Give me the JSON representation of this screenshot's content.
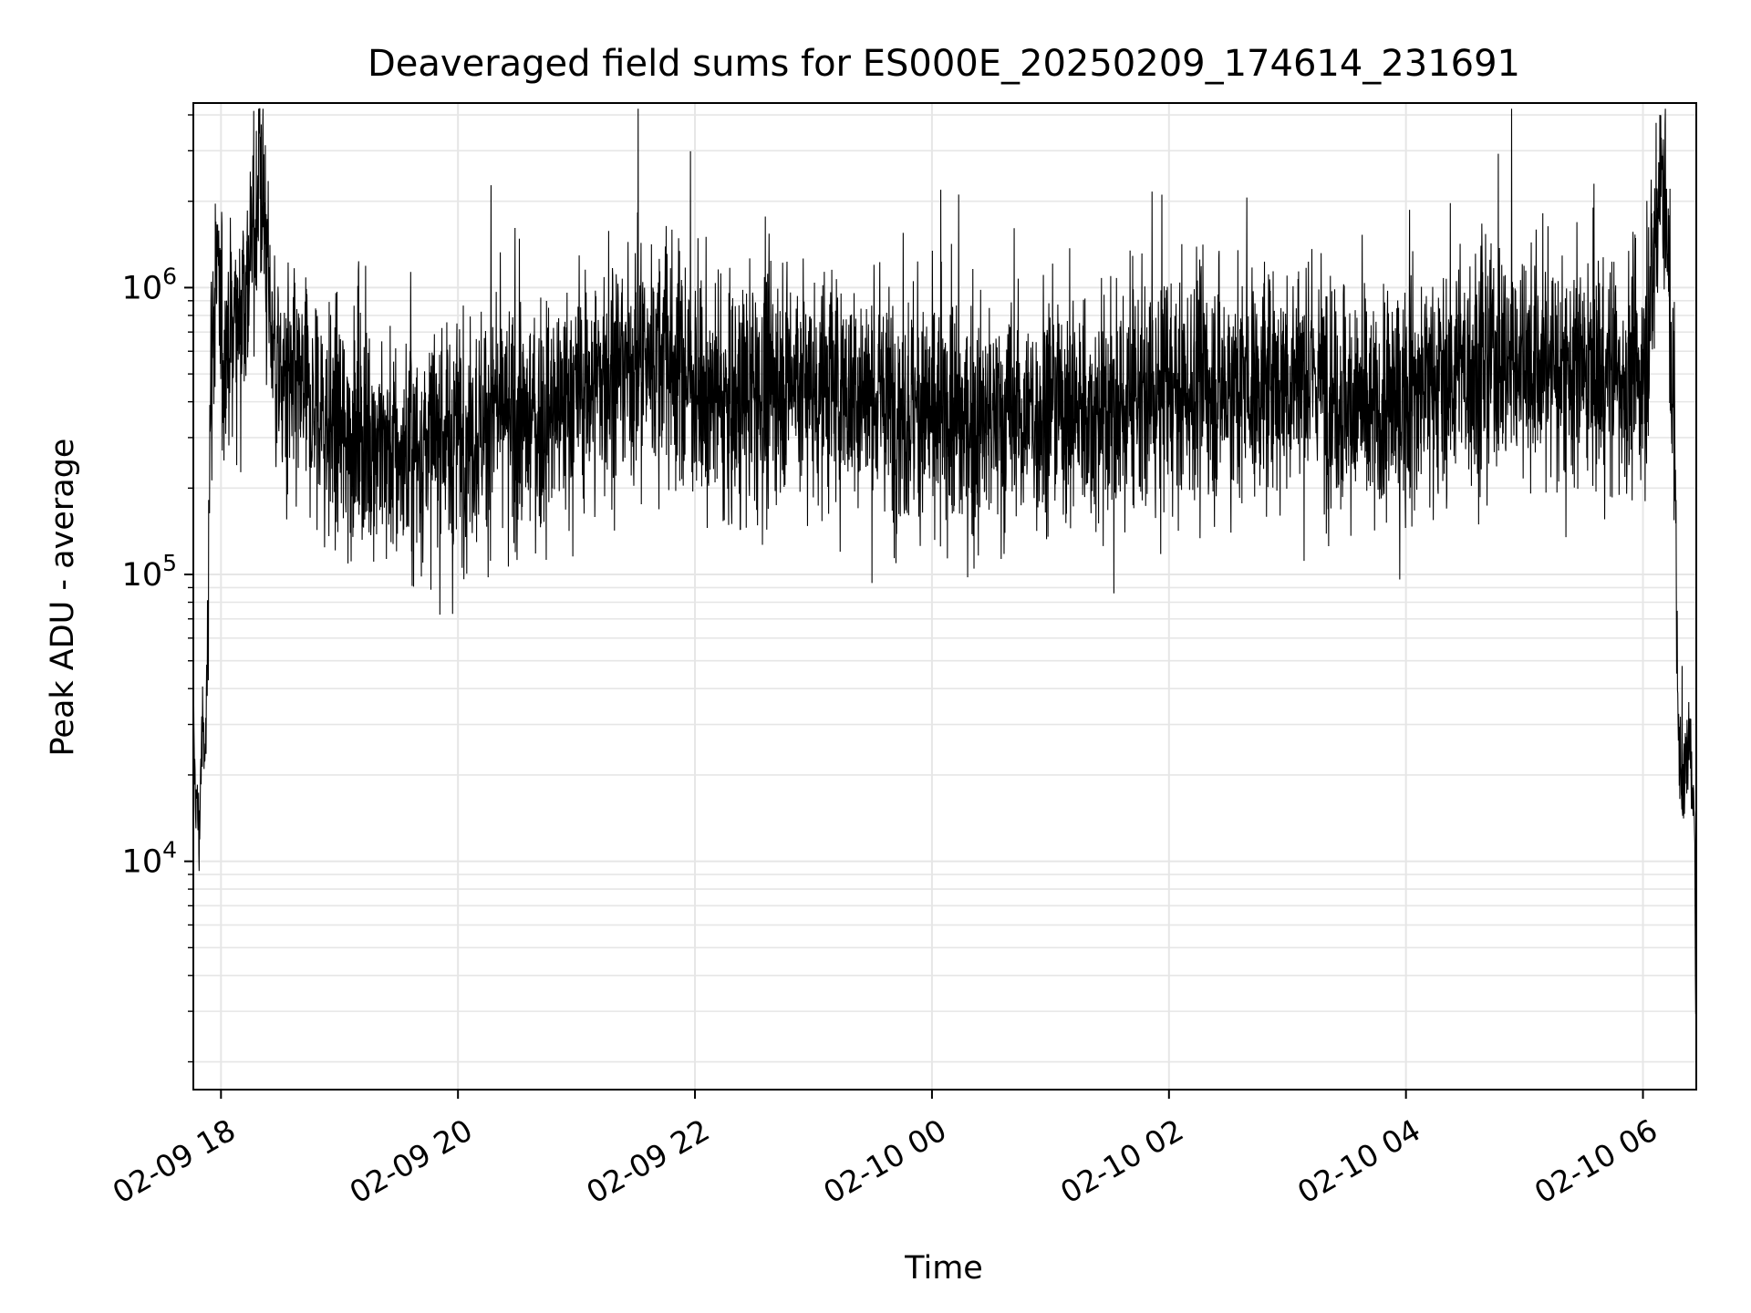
{
  "chart_data": {
    "type": "line",
    "title": "Deaveraged field sums for ES000E_20250209_174614_231691",
    "xlabel": "Time",
    "ylabel": "Peak ADU - average",
    "y_scale": "log",
    "ylim": [
      1600,
      4400000
    ],
    "xlim": [
      "2025-02-09 17:46",
      "2025-02-10 06:27"
    ],
    "grid": true,
    "line_color": "#000000",
    "grid_color": "#e6e6e6",
    "x_ticks": [
      {
        "value": "2025-02-09 18:00",
        "label": "02-09 18"
      },
      {
        "value": "2025-02-09 20:00",
        "label": "02-09 20"
      },
      {
        "value": "2025-02-09 22:00",
        "label": "02-09 22"
      },
      {
        "value": "2025-02-10 00:00",
        "label": "02-10 00"
      },
      {
        "value": "2025-02-10 02:00",
        "label": "02-10 02"
      },
      {
        "value": "2025-02-10 04:00",
        "label": "02-10 04"
      },
      {
        "value": "2025-02-10 06:00",
        "label": "02-10 06"
      }
    ],
    "y_ticks": [
      {
        "value": 10000,
        "base": "10",
        "exp": "4"
      },
      {
        "value": 100000,
        "base": "10",
        "exp": "5"
      },
      {
        "value": 1000000,
        "base": "10",
        "exp": "6"
      }
    ],
    "series": [
      {
        "x": [
          "2025-02-09 17:46",
          "2025-02-09 17:47",
          "2025-02-09 17:48",
          "2025-02-09 17:49",
          "2025-02-09 17:50",
          "2025-02-09 17:51",
          "2025-02-09 17:52",
          "2025-02-09 17:53",
          "2025-02-09 17:54",
          "2025-02-09 17:56",
          "2025-02-09 17:58",
          "2025-02-09 18:00",
          "2025-02-09 18:05",
          "2025-02-09 18:10",
          "2025-02-09 18:15",
          "2025-02-09 18:20",
          "2025-02-09 18:25",
          "2025-02-09 18:30",
          "2025-02-09 18:45",
          "2025-02-09 19:00",
          "2025-02-09 19:15",
          "2025-02-09 19:30",
          "2025-02-09 19:45",
          "2025-02-09 20:00",
          "2025-02-09 20:15",
          "2025-02-09 20:30",
          "2025-02-09 20:45",
          "2025-02-09 21:00",
          "2025-02-09 21:15",
          "2025-02-09 21:30",
          "2025-02-09 21:45",
          "2025-02-09 22:00",
          "2025-02-09 22:15",
          "2025-02-09 22:30",
          "2025-02-09 22:45",
          "2025-02-09 23:00",
          "2025-02-09 23:15",
          "2025-02-09 23:30",
          "2025-02-09 23:45",
          "2025-02-10 00:00",
          "2025-02-10 00:15",
          "2025-02-10 00:30",
          "2025-02-10 00:45",
          "2025-02-10 01:00",
          "2025-02-10 01:15",
          "2025-02-10 01:30",
          "2025-02-10 01:45",
          "2025-02-10 02:00",
          "2025-02-10 02:15",
          "2025-02-10 02:30",
          "2025-02-10 02:45",
          "2025-02-10 03:00",
          "2025-02-10 03:15",
          "2025-02-10 03:30",
          "2025-02-10 03:45",
          "2025-02-10 04:00",
          "2025-02-10 04:15",
          "2025-02-10 04:30",
          "2025-02-10 04:45",
          "2025-02-10 05:00",
          "2025-02-10 05:15",
          "2025-02-10 05:30",
          "2025-02-10 05:45",
          "2025-02-10 06:00",
          "2025-02-10 06:05",
          "2025-02-10 06:08",
          "2025-02-10 06:10",
          "2025-02-10 06:12",
          "2025-02-10 06:14",
          "2025-02-10 06:16",
          "2025-02-10 06:18",
          "2025-02-10 06:20",
          "2025-02-10 06:22",
          "2025-02-10 06:24",
          "2025-02-10 06:26",
          "2025-02-10 06:27"
        ],
        "y": [
          30000,
          18000,
          15000,
          12000,
          25000,
          28000,
          22000,
          45000,
          300000,
          800000,
          1100000,
          600000,
          700000,
          900000,
          1200000,
          2800000,
          800000,
          450000,
          380000,
          300000,
          320000,
          250000,
          280000,
          300000,
          350000,
          330000,
          350000,
          420000,
          500000,
          550000,
          600000,
          450000,
          380000,
          420000,
          500000,
          460000,
          440000,
          420000,
          380000,
          360000,
          330000,
          340000,
          350000,
          400000,
          380000,
          350000,
          400000,
          420000,
          450000,
          450000,
          460000,
          480000,
          500000,
          400000,
          350000,
          420000,
          480000,
          520000,
          550000,
          560000,
          520000,
          500000,
          500000,
          480000,
          900000,
          2500000,
          3000000,
          1500000,
          600000,
          300000,
          25000,
          18000,
          22000,
          26000,
          15000,
          2000
        ],
        "noise_dex": 0.35
      }
    ]
  }
}
